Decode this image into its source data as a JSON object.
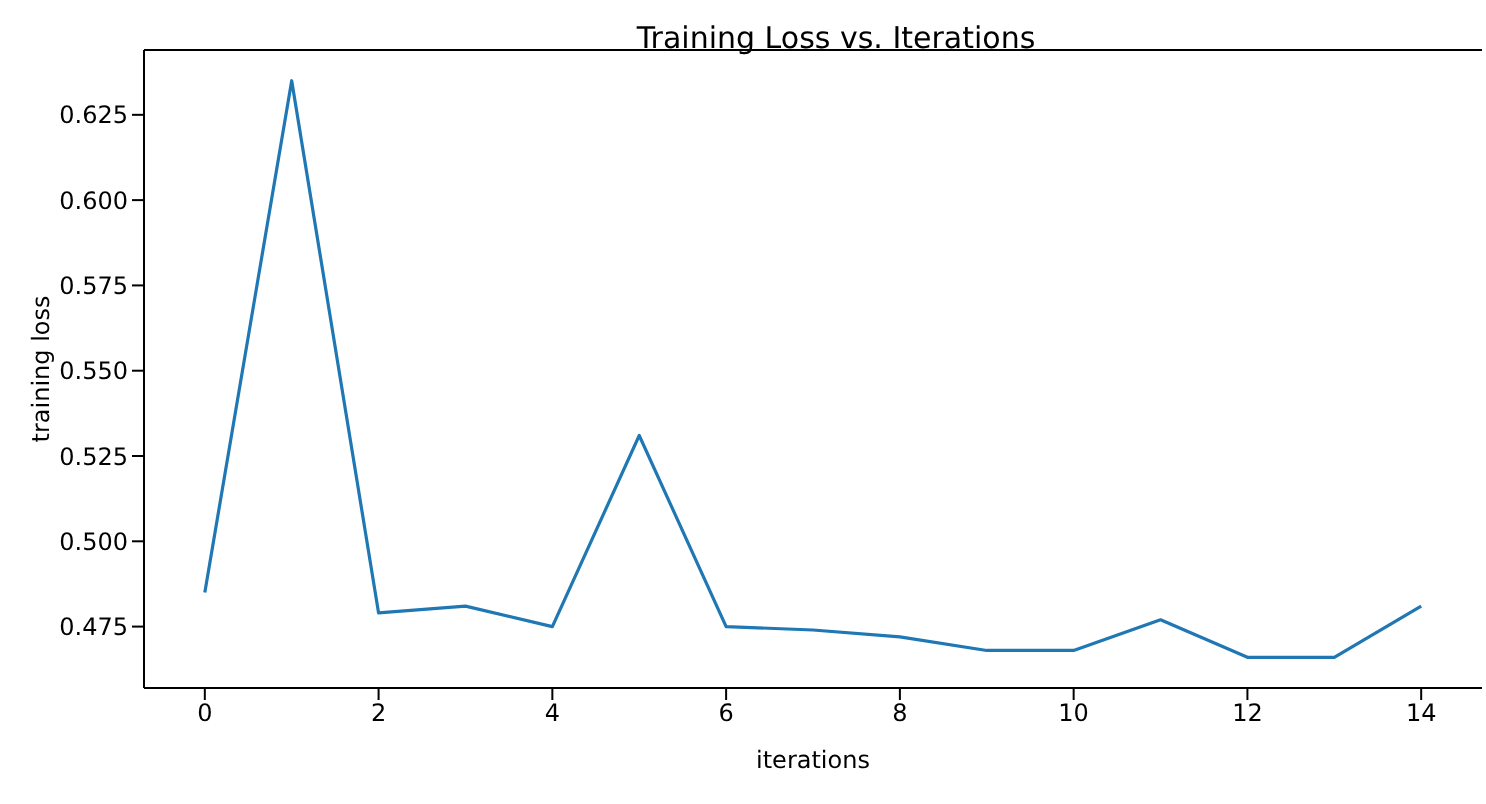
{
  "chart_data": {
    "type": "line",
    "title": "Training Loss vs. Iterations",
    "xlabel": "iterations",
    "ylabel": "training loss",
    "x": [
      0,
      1,
      2,
      3,
      4,
      5,
      6,
      7,
      8,
      9,
      10,
      11,
      12,
      13,
      14
    ],
    "series": [
      {
        "color": "#1f77b4",
        "values": [
          0.485,
          0.635,
          0.479,
          0.481,
          0.475,
          0.531,
          0.475,
          0.474,
          0.472,
          0.468,
          0.468,
          0.477,
          0.466,
          0.466,
          0.481
        ]
      }
    ],
    "xlim": [
      -0.7,
      14.7
    ],
    "xticks": [
      0,
      2,
      4,
      6,
      8,
      10,
      12,
      14
    ],
    "ylim": [
      0.457,
      0.644
    ],
    "yticks": [
      0.475,
      {
        "value": 0.5,
        "label": "0.500"
      },
      0.525,
      {
        "value": 0.55,
        "label": "0.550"
      },
      0.575,
      {
        "value": 0.6,
        "label": "0.600"
      },
      0.625
    ],
    "grid": false,
    "legend": false,
    "marker": "none",
    "line_style": "solid"
  }
}
